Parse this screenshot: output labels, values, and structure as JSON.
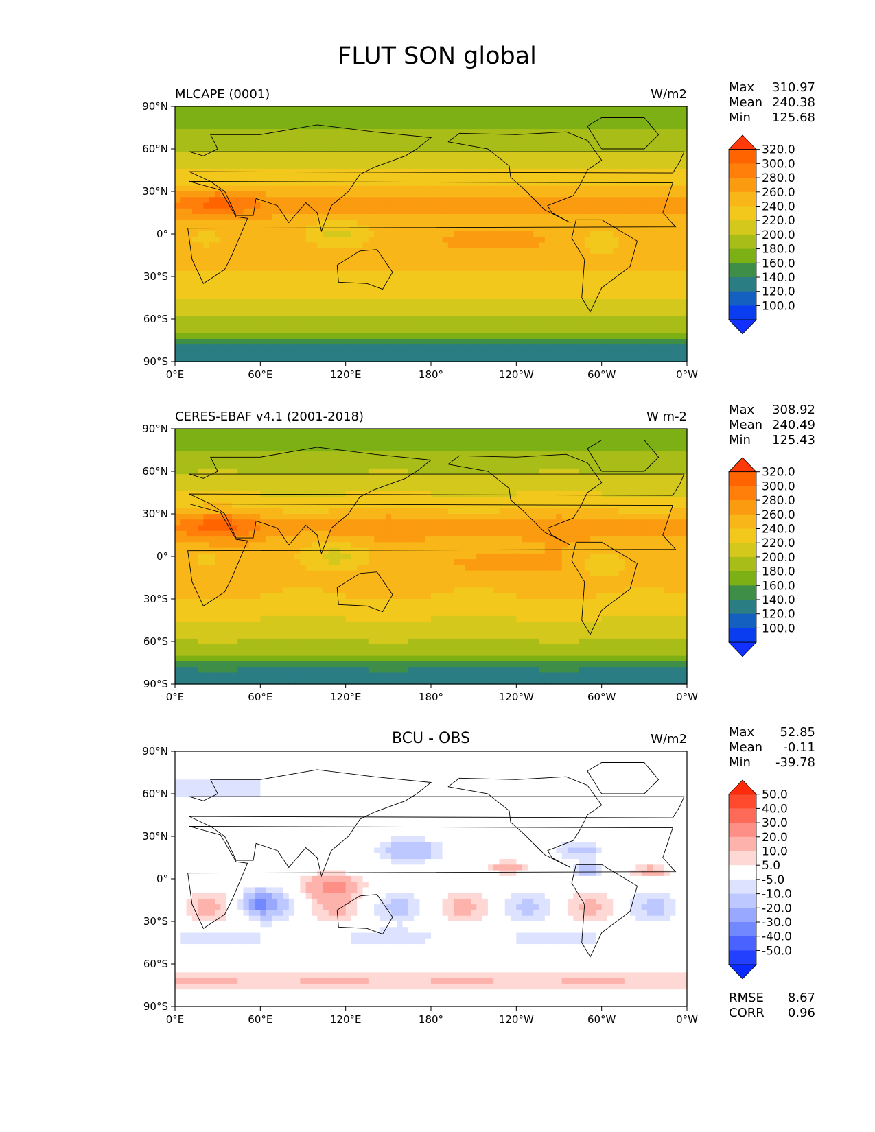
{
  "figure": {
    "title": "FLUT SON global"
  },
  "x_ticks": [
    "0°E",
    "60°E",
    "120°E",
    "180°",
    "120°W",
    "60°W",
    "0°W"
  ],
  "y_ticks": [
    "90°N",
    "60°N",
    "30°N",
    "0°",
    "30°S",
    "60°S",
    "90°S"
  ],
  "panels": [
    {
      "left_title": "MLCAPE (0001)",
      "center_title": "",
      "units": "W/m2",
      "stats": {
        "max_label": "Max",
        "max": "310.97",
        "mean_label": "Mean",
        "mean": "240.38",
        "min_label": "Min",
        "min": "125.68"
      },
      "colorbar_levels": [
        "320.0",
        "300.0",
        "280.0",
        "260.0",
        "240.0",
        "220.0",
        "200.0",
        "180.0",
        "160.0",
        "140.0",
        "120.0",
        "100.0"
      ],
      "colorbar_colors": [
        "#ff3a0a",
        "#ff6400",
        "#ff7f0a",
        "#fb9b10",
        "#f9b618",
        "#f2c81c",
        "#d4c81c",
        "#a9bd18",
        "#7cb014",
        "#3f8e48",
        "#2a7d83",
        "#1460c0",
        "#0a3cf0",
        "#1230ff"
      ],
      "field": "abs"
    },
    {
      "left_title": "CERES-EBAF v4.1 (2001-2018)",
      "center_title": "",
      "units": "W m-2",
      "stats": {
        "max_label": "Max",
        "max": "308.92",
        "mean_label": "Mean",
        "mean": "240.49",
        "min_label": "Min",
        "min": "125.43"
      },
      "colorbar_levels": [
        "320.0",
        "300.0",
        "280.0",
        "260.0",
        "240.0",
        "220.0",
        "200.0",
        "180.0",
        "160.0",
        "140.0",
        "120.0",
        "100.0"
      ],
      "colorbar_colors": [
        "#ff3a0a",
        "#ff6400",
        "#ff7f0a",
        "#fb9b10",
        "#f9b618",
        "#f2c81c",
        "#d4c81c",
        "#a9bd18",
        "#7cb014",
        "#3f8e48",
        "#2a7d83",
        "#1460c0",
        "#0a3cf0",
        "#1230ff"
      ],
      "field": "abs"
    },
    {
      "left_title": "",
      "center_title": "BCU - OBS",
      "units": "W/m2",
      "stats": {
        "max_label": "Max",
        "max": "52.85",
        "mean_label": "Mean",
        "mean": "-0.11",
        "min_label": "Min",
        "min": "-39.78"
      },
      "colorbar_levels": [
        "50.0",
        "40.0",
        "30.0",
        "20.0",
        "10.0",
        "5.0",
        "-5.0",
        "-10.0",
        "-20.0",
        "-30.0",
        "-40.0",
        "-50.0"
      ],
      "colorbar_colors": [
        "#ff2a0a",
        "#ff4a2e",
        "#fd6a58",
        "#fd8f86",
        "#fdb2ac",
        "#fdd8d4",
        "#ffffff",
        "#dde3ff",
        "#bcc8ff",
        "#98a8ff",
        "#7288ff",
        "#4a62ff",
        "#2440ff",
        "#0a2aff"
      ],
      "field": "diff",
      "bottom_stats": {
        "rmse_label": "RMSE",
        "rmse": "8.67",
        "corr_label": "CORR",
        "corr": "0.96"
      }
    }
  ]
}
